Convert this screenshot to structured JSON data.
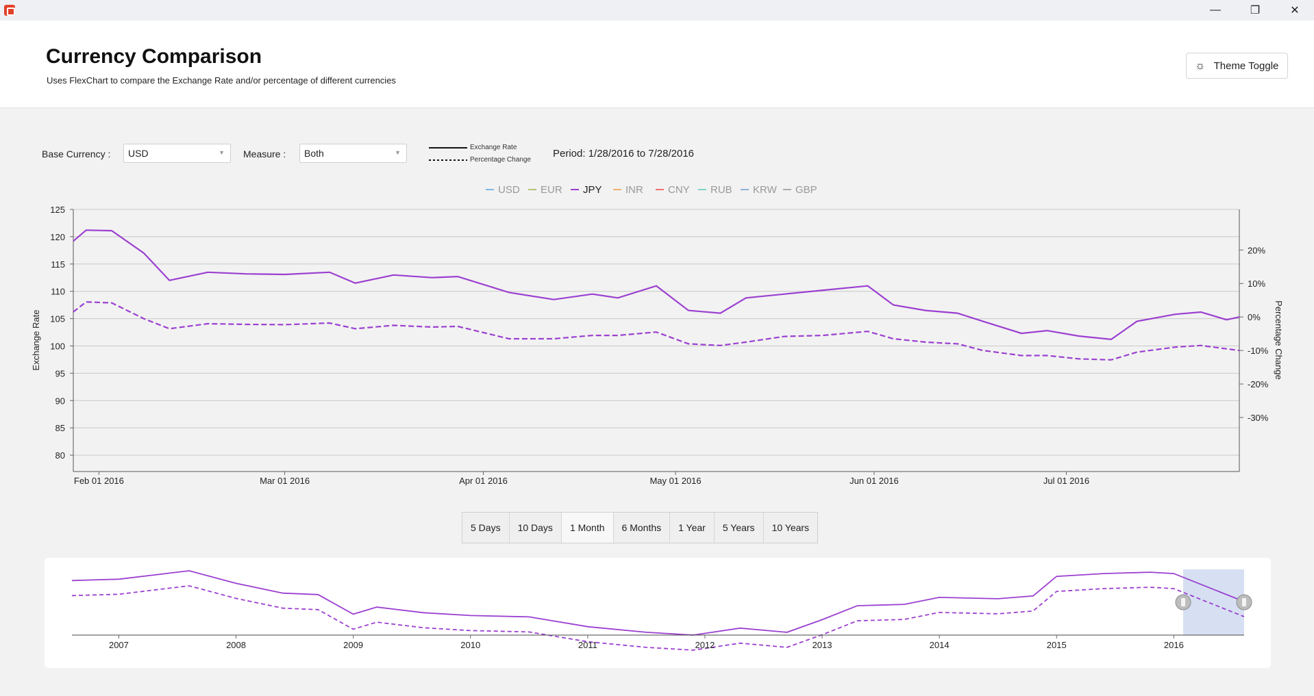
{
  "window": {
    "minimize_icon": "minimize-icon",
    "restore_icon": "restore-icon",
    "close_icon": "close-icon"
  },
  "header": {
    "title": "Currency Comparison",
    "subtitle": "Uses FlexChart to compare the Exchange Rate and/or percentage of different currencies",
    "theme_toggle_label": "Theme Toggle"
  },
  "controls": {
    "base_currency_label": "Base Currency :",
    "base_currency_value": "USD",
    "measure_label": "Measure :",
    "measure_value": "Both",
    "legend_exchange_rate": "Exchange Rate",
    "legend_percentage_change": "Percentage Change",
    "period_text": "Period: 1/28/2016 to 7/28/2016"
  },
  "colors": {
    "series_jpy": "#9b3fd1",
    "nav_selection": "#d6e0f2"
  },
  "chart_data": {
    "type": "line",
    "legend": [
      "USD",
      "EUR",
      "JPY",
      "INR",
      "CNY",
      "RUB",
      "KRW",
      "GBP"
    ],
    "active_series": "JPY",
    "legend_colors": [
      "#7fb7e3",
      "#b5c27a",
      "#9b3fd1",
      "#f0b36b",
      "#f07070",
      "#7fd3c8",
      "#8fb0e0",
      "#aaaaaa"
    ],
    "ylabel": "Exchange Rate",
    "y2label": "Percentage Change",
    "ylim": [
      77,
      125
    ],
    "y_ticks": [
      "125",
      "120",
      "115",
      "110",
      "105",
      "100",
      "95",
      "90",
      "85",
      "80"
    ],
    "y2_ticks": [
      "20%",
      "10%",
      "0%",
      "-10%",
      "-20%",
      "-30%"
    ],
    "x_ticks": [
      "Feb 01 2016",
      "Mar 01 2016",
      "Apr 01 2016",
      "May 01 2016",
      "Jun 01 2016",
      "Jul 01 2016"
    ],
    "x_range": [
      "2016-01-28",
      "2016-07-28"
    ],
    "grid": true,
    "legend_position": "top",
    "series": [
      {
        "name": "JPY",
        "measure": "Exchange Rate",
        "style": "solid",
        "x": [
          "2016-01-28",
          "2016-01-30",
          "2016-02-03",
          "2016-02-08",
          "2016-02-12",
          "2016-02-18",
          "2016-02-24",
          "2016-03-01",
          "2016-03-08",
          "2016-03-12",
          "2016-03-18",
          "2016-03-24",
          "2016-03-28",
          "2016-04-05",
          "2016-04-12",
          "2016-04-18",
          "2016-04-22",
          "2016-04-28",
          "2016-05-03",
          "2016-05-08",
          "2016-05-12",
          "2016-05-18",
          "2016-05-24",
          "2016-05-31",
          "2016-06-04",
          "2016-06-09",
          "2016-06-14",
          "2016-06-18",
          "2016-06-24",
          "2016-06-28",
          "2016-07-03",
          "2016-07-08",
          "2016-07-12",
          "2016-07-18",
          "2016-07-22",
          "2016-07-26",
          "2016-07-28"
        ],
        "y": [
          119.2,
          121.2,
          121.1,
          117.0,
          112.0,
          113.5,
          113.2,
          113.1,
          113.5,
          111.5,
          113.0,
          112.5,
          112.7,
          109.8,
          108.5,
          109.5,
          108.8,
          111.0,
          106.5,
          106.0,
          108.8,
          109.5,
          110.2,
          111.0,
          107.5,
          106.5,
          106.0,
          104.5,
          102.3,
          102.8,
          101.8,
          101.2,
          104.5,
          105.8,
          106.2,
          104.8,
          105.3
        ]
      },
      {
        "name": "JPY",
        "measure": "Percentage Change",
        "style": "dashed",
        "x": [
          "2016-01-28",
          "2016-01-30",
          "2016-02-03",
          "2016-02-08",
          "2016-02-12",
          "2016-02-18",
          "2016-02-24",
          "2016-03-01",
          "2016-03-08",
          "2016-03-12",
          "2016-03-18",
          "2016-03-24",
          "2016-03-28",
          "2016-04-05",
          "2016-04-12",
          "2016-04-18",
          "2016-04-22",
          "2016-04-28",
          "2016-05-03",
          "2016-05-08",
          "2016-05-12",
          "2016-05-18",
          "2016-05-24",
          "2016-05-31",
          "2016-06-04",
          "2016-06-09",
          "2016-06-14",
          "2016-06-18",
          "2016-06-24",
          "2016-06-28",
          "2016-07-03",
          "2016-07-08",
          "2016-07-12",
          "2016-07-18",
          "2016-07-22",
          "2016-07-26",
          "2016-07-28"
        ],
        "y": [
          1.5,
          4.5,
          4.2,
          -0.5,
          -3.5,
          -2.0,
          -2.2,
          -2.3,
          -1.8,
          -3.5,
          -2.5,
          -3.0,
          -2.8,
          -6.5,
          -6.5,
          -5.5,
          -5.5,
          -4.5,
          -8.0,
          -8.5,
          -7.5,
          -5.8,
          -5.5,
          -4.3,
          -6.5,
          -7.5,
          -8.0,
          -10.0,
          -11.5,
          -11.5,
          -12.5,
          -12.8,
          -10.5,
          -9.0,
          -8.5,
          -9.5,
          -10.0
        ]
      }
    ],
    "range_buttons": [
      "5 Days",
      "10 Days",
      "1 Month",
      "6 Months",
      "1 Year",
      "5 Years",
      "10 Years"
    ],
    "selected_range": "1 Month",
    "navigator": {
      "x_ticks": [
        "2007",
        "2008",
        "2009",
        "2010",
        "2011",
        "2012",
        "2013",
        "2014",
        "2015",
        "2016"
      ],
      "x": [
        2006.6,
        2007.0,
        2007.4,
        2007.6,
        2008.0,
        2008.4,
        2008.7,
        2009.0,
        2009.2,
        2009.6,
        2010.0,
        2010.5,
        2011.0,
        2011.5,
        2011.9,
        2012.3,
        2012.7,
        2013.0,
        2013.3,
        2013.7,
        2014.0,
        2014.5,
        2014.8,
        2015.0,
        2015.4,
        2015.8,
        2016.0,
        2016.3,
        2016.6
      ],
      "y": [
        116,
        117,
        121,
        123,
        114,
        107,
        106,
        92,
        97,
        93,
        91,
        90,
        83,
        79,
        77,
        82,
        79,
        88,
        98,
        99,
        104,
        103,
        105,
        119,
        121,
        122,
        121,
        111,
        101
      ],
      "selection": [
        "2016-01-28",
        "2016-07-28"
      ]
    }
  }
}
